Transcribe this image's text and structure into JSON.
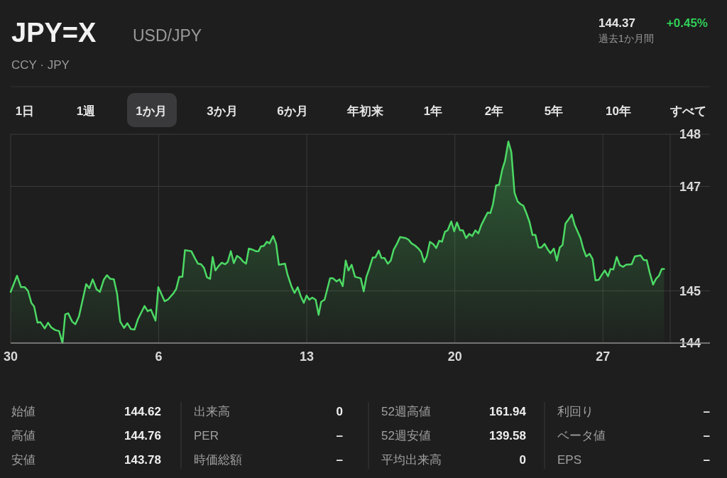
{
  "chart_data": {
    "type": "area",
    "title": "JPY=X",
    "subtitle": "USD/JPY",
    "annotations": [
      "CCY · JPY",
      "144.37",
      "+0.45%",
      "過去1か月間",
      "1日",
      "1週",
      "1か月",
      "3か月",
      "6か月",
      "年初来",
      "1年",
      "2年",
      "5年",
      "10年",
      "すべて",
      "始値",
      "144.62",
      "高値",
      "144.76",
      "安値",
      "143.78",
      "出来高",
      "0",
      "PER",
      "–",
      "時価総額",
      "–",
      "52週高値",
      "161.94",
      "52週安値",
      "139.58",
      "平均出来高",
      "0",
      "利回り",
      "–",
      "ベータ値",
      "–",
      "EPS",
      "–"
    ],
    "color": "#4cd964",
    "x": [
      "--08-30T00:00",
      "--08-30T07:12",
      "--08-30T11:46",
      "--08-30T16:05",
      "--08-30T19:41",
      "--08-30T23:31",
      "--08-31T02:38",
      "--08-31T06:29",
      "--08-31T09:50",
      "--08-31T14:38",
      "--08-31T18:29",
      "--08-31T22:05",
      "--09-01T02:24",
      "--09-01T06:58",
      "--09-01T10:48",
      "--09-01T13:55",
      "--09-01T17:17",
      "--09-01T21:50",
      "--09-02T01:26",
      "--09-02T05:31",
      "--09-02T13:41",
      "--09-02T17:17",
      "--09-02T21:07",
      "--09-03T01:26",
      "--09-03T05:17",
      "--09-03T09:36",
      "--09-03T13:12",
      "--09-03T17:02",
      "--09-03T21:07",
      "--09-04T00:43",
      "--09-04T04:19",
      "--09-04T08:38",
      "--09-04T12:29",
      "--09-04T16:19",
      "--09-04T20:38",
      "--09-05T00:29",
      "--09-05T07:55",
      "--09-05T11:31",
      "--09-05T15:07",
      "--09-05T20:24",
      "--09-05T23:31",
      "--09-06T06:43",
      "--09-06T10:19",
      "--09-06T16:34",
      "--09-06T19:55",
      "--09-06T23:17",
      "--09-07T02:53",
      "--09-07T05:46",
      "--09-07T12:58",
      "--09-07T17:31",
      "--09-07T20:38",
      "--09-08T00:00",
      "--09-08T03:22",
      "--09-08T06:43",
      "--09-08T10:19",
      "--09-08T13:12",
      "--09-08T16:19",
      "--09-08T19:41",
      "--09-08T23:31",
      "--09-09T03:22",
      "--09-09T06:14",
      "--09-09T09:50",
      "--09-09T13:12",
      "--09-09T16:48",
      "--09-09T20:24",
      "--09-09T23:46",
      "--09-10T03:07",
      "--09-10T06:14",
      "--09-10T10:19",
      "--09-10T14:10",
      "--09-10T17:17",
      "--09-10T19:55",
      "--09-10T23:17",
      "--09-11T02:38",
      "--09-11T05:46",
      "--09-11T09:50",
      "--09-11T13:12",
      "--09-11T16:19",
      "--09-11T23:17",
      "--09-12T02:10",
      "--09-12T06:43",
      "--09-12T10:05",
      "--09-12T13:41",
      "--09-12T17:17",
      "--09-12T20:38",
      "--09-12T23:46",
      "--09-13T02:53",
      "--09-13T06:14",
      "--09-13T10:05",
      "--09-13T13:26",
      "--09-13T16:19",
      "--09-13T20:10",
      "--09-14T02:24",
      "--09-14T05:46",
      "--09-14T09:50",
      "--09-14T13:12",
      "--09-14T16:48",
      "--09-14T20:10",
      "--09-14T23:17",
      "--09-15T02:53",
      "--09-15T06:43",
      "--09-15T13:12",
      "--09-15T16:34",
      "--09-15T19:41",
      "--09-15T22:48",
      "--09-16T02:53",
      "--09-16T05:46",
      "--09-16T09:36",
      "--09-16T12:43",
      "--09-16T16:05",
      "--09-16T19:55",
      "--09-16T23:17",
      "--09-17T02:38",
      "--09-17T06:14",
      "--09-17T09:50",
      "--09-17T16:19",
      "--09-17T19:26",
      "--09-17T22:48",
      "--09-18T02:38",
      "--09-18T06:43",
      "--09-18T09:50",
      "--09-18T13:12",
      "--09-18T16:19",
      "--09-18T19:41",
      "--09-18T23:46",
      "--09-19T02:53",
      "--09-19T06:14",
      "--09-19T09:22",
      "--09-19T12:43",
      "--09-19T15:50",
      "--09-19T19:55",
      "--09-19T23:17",
      "--09-20T02:24",
      "--09-20T05:46",
      "--09-20T09:07",
      "--09-20T12:43",
      "--09-20T16:19",
      "--09-20T19:41",
      "--09-20T23:17",
      "--09-21T02:38",
      "--09-21T06:00",
      "--09-21T09:50",
      "--09-21T13:12",
      "--09-21T16:19",
      "--09-21T19:12",
      "--09-21T22:48",
      "--09-22T02:10",
      "--09-22T05:46",
      "--09-22T08:53",
      "--09-22T12:43",
      "--09-22T16:05",
      "--09-22T19:41",
      "--09-22T23:17",
      "--09-23T02:38",
      "--09-23T05:46",
      "--09-23T09:07",
      "--09-23T12:43",
      "--09-23T16:05",
      "--09-23T19:26",
      "--09-23T22:48",
      "--09-24T02:10",
      "--09-24T05:46",
      "--09-24T09:07",
      "--09-24T12:29",
      "--09-24T16:19",
      "--09-24T19:41",
      "--09-24T23:02",
      "--09-25T02:10",
      "--09-25T05:31",
      "--09-25T08:38",
      "--09-25T12:43",
      "--09-25T15:50",
      "--09-25T19:12",
      "--09-25T22:34",
      "--09-26T01:41",
      "--09-26T05:02",
      "--09-26T08:53",
      "--09-26T12:14",
      "--09-26T15:36",
      "--09-26T19:12",
      "--09-26T22:48",
      "--09-27T02:10",
      "--09-27T05:46",
      "--09-27T08:38",
      "--09-27T11:46",
      "--09-27T15:36",
      "--09-27T19:12",
      "--09-27T22:48",
      "--09-28T02:10",
      "--09-28T08:38",
      "--09-28T12:14",
      "--09-28T18:43",
      "--09-28T22:19",
      "--09-29T01:41",
      "--09-29T05:02",
      "--09-29T08:53",
      "--09-29T12:14",
      "--09-29T15:36",
      "--09-29T18:43",
      "--09-29T21:22"
    ],
    "values": [
      144.98,
      145.29,
      145.07,
      145.07,
      145.0,
      144.77,
      144.7,
      144.39,
      144.4,
      144.28,
      144.39,
      144.3,
      144.25,
      144.23,
      144.0,
      144.55,
      144.57,
      144.41,
      144.36,
      144.51,
      145.13,
      145.05,
      145.22,
      145.03,
      144.98,
      145.21,
      145.3,
      145.23,
      145.22,
      144.95,
      144.41,
      144.29,
      144.38,
      144.27,
      144.26,
      144.46,
      144.71,
      144.61,
      144.64,
      144.43,
      145.07,
      144.8,
      144.83,
      144.95,
      145.04,
      145.27,
      145.27,
      145.78,
      145.76,
      145.61,
      145.52,
      145.51,
      145.44,
      145.26,
      145.23,
      145.65,
      145.39,
      145.47,
      145.54,
      145.51,
      145.55,
      145.76,
      145.53,
      145.67,
      145.63,
      145.56,
      145.52,
      145.81,
      145.79,
      145.76,
      145.76,
      145.85,
      145.86,
      145.94,
      145.91,
      146.05,
      145.9,
      145.5,
      145.52,
      145.31,
      145.08,
      144.96,
      145.07,
      144.89,
      144.77,
      144.91,
      144.83,
      144.87,
      144.83,
      144.54,
      144.79,
      144.83,
      145.24,
      145.24,
      145.18,
      145.22,
      145.09,
      145.58,
      145.39,
      145.5,
      145.27,
      145.24,
      144.99,
      145.27,
      145.42,
      145.64,
      145.64,
      145.77,
      145.63,
      145.63,
      145.52,
      145.58,
      145.79,
      145.9,
      146.03,
      146.01,
      145.98,
      145.91,
      145.87,
      145.81,
      145.74,
      145.55,
      145.67,
      145.94,
      145.89,
      145.82,
      145.96,
      145.94,
      146.13,
      146.16,
      146.33,
      146.14,
      146.31,
      146.16,
      146.16,
      146.01,
      146.09,
      146.05,
      146.16,
      146.1,
      146.26,
      146.39,
      146.5,
      146.49,
      146.66,
      147.02,
      147.03,
      147.32,
      147.49,
      147.86,
      147.66,
      146.88,
      146.71,
      146.66,
      146.63,
      146.49,
      146.32,
      146.07,
      146.07,
      145.83,
      145.83,
      145.9,
      145.8,
      145.72,
      145.81,
      145.58,
      145.83,
      145.88,
      146.29,
      146.36,
      146.46,
      146.27,
      146.14,
      146.01,
      145.81,
      145.66,
      145.71,
      145.61,
      145.2,
      145.21,
      145.31,
      145.39,
      145.28,
      145.42,
      145.41,
      145.65,
      145.49,
      145.46,
      145.5,
      145.51,
      145.66,
      145.68,
      145.59,
      145.59,
      145.35,
      145.12,
      145.23,
      145.29,
      145.42,
      145.42
    ],
    "xlim": [
      "--08-30",
      "--10-02T01:26"
    ],
    "ylim": [
      144,
      148
    ],
    "xticks": [
      {
        "value": "--08-30",
        "label": "30"
      },
      {
        "value": "--09-06",
        "label": "6"
      },
      {
        "value": "--09-13",
        "label": "13"
      },
      {
        "value": "--09-20",
        "label": "20"
      },
      {
        "value": "--09-27",
        "label": "27"
      }
    ],
    "yticks": [
      148,
      147,
      145,
      144
    ],
    "grid": true
  }
}
